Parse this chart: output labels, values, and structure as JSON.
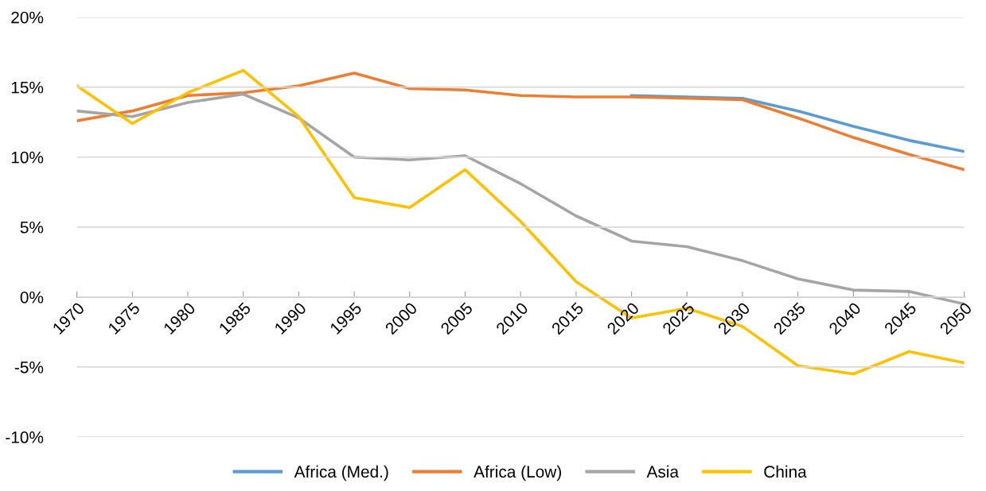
{
  "chart_data": {
    "type": "line",
    "categories": [
      "1970",
      "1975",
      "1980",
      "1985",
      "1990",
      "1995",
      "2000",
      "2005",
      "2010",
      "2015",
      "2020",
      "2025",
      "2030",
      "2035",
      "2040",
      "2045",
      "2050"
    ],
    "series": [
      {
        "name": "Africa (Med.)",
        "color": "#5b9bd5",
        "values": [
          null,
          null,
          null,
          null,
          null,
          null,
          null,
          null,
          null,
          null,
          14.4,
          14.3,
          14.2,
          13.3,
          12.2,
          11.2,
          10.4
        ]
      },
      {
        "name": "Africa (Low)",
        "color": "#ed7d31",
        "values": [
          12.6,
          13.3,
          14.4,
          14.6,
          15.1,
          16.0,
          14.9,
          14.8,
          14.4,
          14.3,
          14.3,
          14.2,
          14.1,
          12.8,
          11.4,
          10.2,
          9.1
        ]
      },
      {
        "name": "Asia",
        "color": "#a5a5a5",
        "values": [
          13.3,
          12.9,
          13.9,
          14.5,
          12.8,
          10.0,
          9.8,
          10.1,
          8.1,
          5.8,
          4.0,
          3.6,
          2.6,
          1.3,
          0.5,
          0.4,
          -0.5
        ]
      },
      {
        "name": "China",
        "color": "#ffc000",
        "values": [
          15.1,
          12.4,
          14.6,
          16.2,
          12.9,
          7.1,
          6.4,
          9.1,
          5.4,
          1.1,
          -1.5,
          -0.8,
          -2.1,
          -4.9,
          -5.5,
          -3.9,
          -4.7
        ]
      }
    ],
    "ylim": [
      -10,
      20
    ],
    "yticks": [
      {
        "value": -10,
        "label": "-10%"
      },
      {
        "value": -5,
        "label": "-5%"
      },
      {
        "value": 0,
        "label": "0%"
      },
      {
        "value": 5,
        "label": "5%"
      },
      {
        "value": 10,
        "label": "10%"
      },
      {
        "value": 15,
        "label": "15%"
      },
      {
        "value": 20,
        "label": "20%"
      }
    ],
    "grid": "y",
    "legend": "bottom",
    "marker": "none",
    "line_style": "solid"
  }
}
